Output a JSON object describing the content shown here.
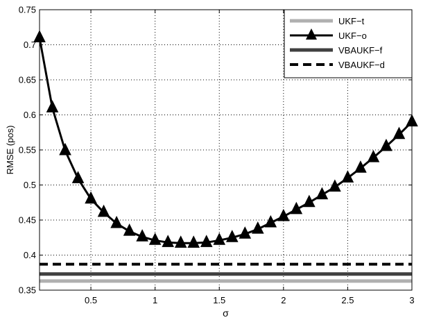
{
  "chart_data": {
    "type": "line",
    "title": "",
    "xlabel": "σ",
    "ylabel": "RMSE (pos)",
    "xlim": [
      0.1,
      3.0
    ],
    "ylim": [
      0.35,
      0.75
    ],
    "xticks": [
      0.5,
      1,
      1.5,
      2,
      2.5,
      3
    ],
    "xtick_labels": [
      "0.5",
      "1",
      "1.5",
      "2",
      "2.5",
      "3"
    ],
    "yticks": [
      0.35,
      0.4,
      0.45,
      0.5,
      0.55,
      0.6,
      0.65,
      0.7,
      0.75
    ],
    "ytick_labels": [
      "0.35",
      "0.4",
      "0.45",
      "0.5",
      "0.55",
      "0.6",
      "0.65",
      "0.7",
      "0.75"
    ],
    "grid": true,
    "legend_position": "top-right",
    "series": [
      {
        "name": "UKF−t",
        "style": "solid-thick",
        "color": "#b0b0b0",
        "x": [
          0.1,
          3.0
        ],
        "y": [
          0.363,
          0.363
        ]
      },
      {
        "name": "UKF−o",
        "style": "solid-triangle",
        "color": "#000000",
        "x": [
          0.1,
          0.2,
          0.3,
          0.4,
          0.5,
          0.6,
          0.7,
          0.8,
          0.9,
          1.0,
          1.1,
          1.2,
          1.3,
          1.4,
          1.5,
          1.6,
          1.7,
          1.8,
          1.9,
          2.0,
          2.1,
          2.2,
          2.3,
          2.4,
          2.5,
          2.6,
          2.7,
          2.8,
          2.9,
          3.0
        ],
        "y": [
          0.71,
          0.61,
          0.549,
          0.509,
          0.48,
          0.461,
          0.445,
          0.434,
          0.426,
          0.421,
          0.418,
          0.417,
          0.417,
          0.418,
          0.421,
          0.425,
          0.43,
          0.437,
          0.446,
          0.455,
          0.465,
          0.475,
          0.486,
          0.497,
          0.51,
          0.524,
          0.539,
          0.555,
          0.572,
          0.59
        ]
      },
      {
        "name": "VBAUKF−f",
        "style": "solid-thick",
        "color": "#404040",
        "x": [
          0.1,
          3.0
        ],
        "y": [
          0.373,
          0.373
        ]
      },
      {
        "name": "VBAUKF−d",
        "style": "dashed-thick",
        "color": "#000000",
        "x": [
          0.1,
          3.0
        ],
        "y": [
          0.387,
          0.387
        ]
      }
    ]
  }
}
